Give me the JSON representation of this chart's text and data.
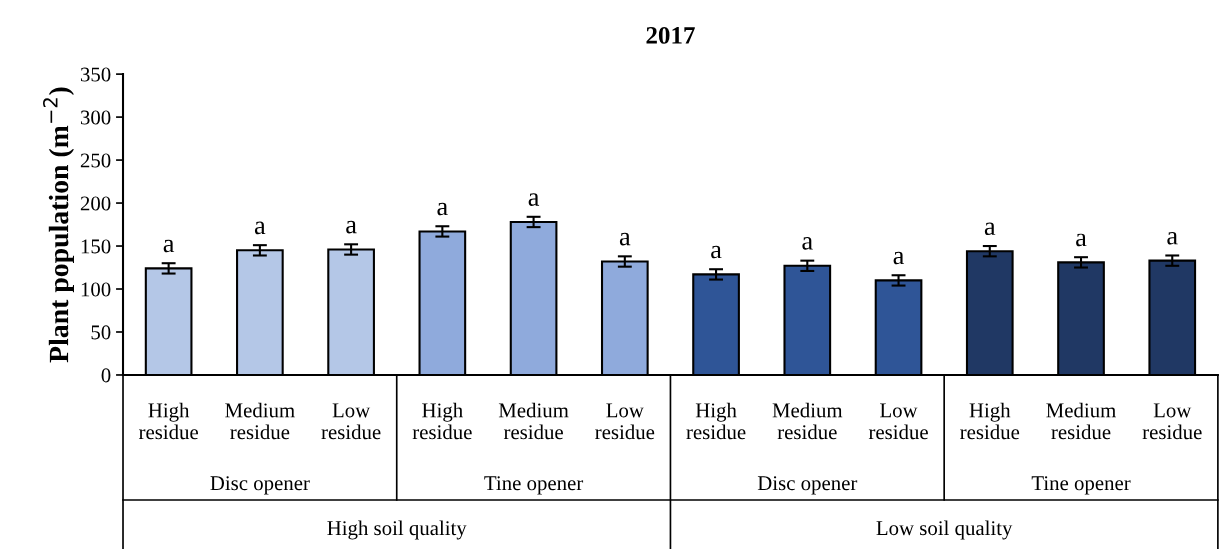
{
  "chart_data": {
    "type": "bar",
    "title": "2017",
    "ylabel": "Plant population (m$^{−2}$)",
    "categories": [
      "High residue",
      "Medium residue",
      "Low residue",
      "High residue",
      "Medium residue",
      "Low residue",
      "High residue",
      "Medium residue",
      "Low residue",
      "High residue",
      "Medium residue",
      "Low residue"
    ],
    "values": [
      124,
      145,
      146,
      167,
      178,
      132,
      117,
      127,
      110,
      144,
      131,
      133
    ],
    "errors": [
      6,
      6,
      6,
      6,
      6,
      6,
      6,
      6,
      6,
      6,
      6,
      6
    ],
    "colors": [
      "#b4c7e7",
      "#b4c7e7",
      "#b4c7e7",
      "#8faadc",
      "#8faadc",
      "#8faadc",
      "#2f5597",
      "#2f5597",
      "#2f5597",
      "#203864",
      "#203864",
      "#203864"
    ],
    "value_labels": [
      "a",
      "a",
      "a",
      "a",
      "a",
      "a",
      "a",
      "a",
      "a",
      "a",
      "a",
      "a"
    ],
    "annotations": [
      "Disc opener",
      "Tine opener",
      "Disc opener",
      "Tine opener",
      "High soil quality",
      "Low soil quality"
    ],
    "ylim": [
      0,
      350
    ],
    "yticks": [
      0,
      50,
      100,
      150,
      200,
      250,
      300,
      350
    ],
    "grid": false
  }
}
